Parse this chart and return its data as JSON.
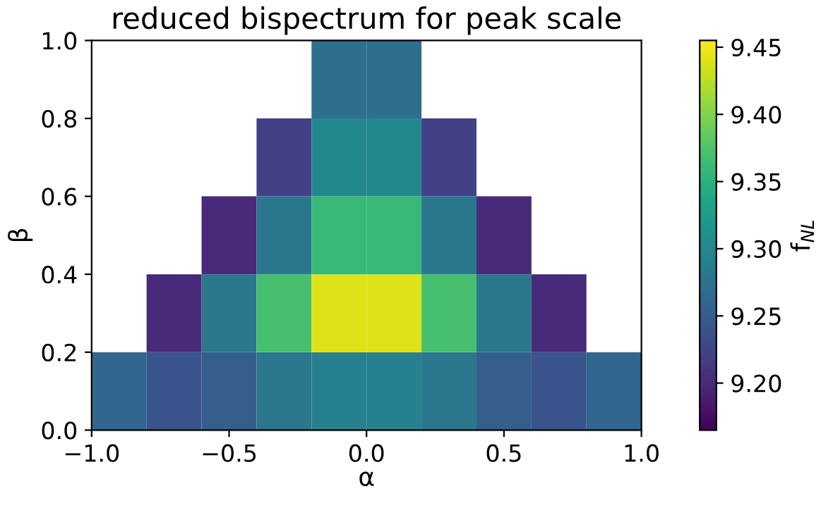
{
  "chart_data": {
    "type": "heatmap",
    "title": "reduced bispectrum for peak scale",
    "xlabel": "α",
    "ylabel": "β",
    "clabel": "f$_{NL}$",
    "x": [
      -0.9,
      -0.7,
      -0.5,
      -0.3,
      -0.1,
      0.1,
      0.3,
      0.5,
      0.7,
      0.9
    ],
    "y": [
      0.9,
      0.7,
      0.5,
      0.3,
      0.1
    ],
    "cells": [
      [
        null,
        null,
        null,
        null,
        9.27,
        9.27,
        null,
        null,
        null,
        null
      ],
      [
        null,
        null,
        null,
        9.22,
        9.3,
        9.3,
        9.22,
        null,
        null,
        null
      ],
      [
        null,
        null,
        9.2,
        9.28,
        9.36,
        9.36,
        9.28,
        9.2,
        null,
        null
      ],
      [
        null,
        9.2,
        9.28,
        9.37,
        9.44,
        9.44,
        9.37,
        9.28,
        9.2,
        null
      ],
      [
        9.26,
        9.24,
        9.25,
        9.28,
        9.29,
        9.29,
        9.28,
        9.25,
        9.24,
        9.26
      ]
    ],
    "xlim": [
      -1,
      1
    ],
    "ylim": [
      0,
      1
    ],
    "xticks": [
      {
        "value": -1,
        "label": "−1.0"
      },
      {
        "value": -0.5,
        "label": "−0.5"
      },
      {
        "value": 0,
        "label": "0.0"
      },
      {
        "value": 0.5,
        "label": "0.5"
      },
      {
        "value": 1,
        "label": "1.0"
      }
    ],
    "yticks": [
      {
        "value": 0,
        "label": "0.0"
      },
      {
        "value": 0.2,
        "label": "0.2"
      },
      {
        "value": 0.4,
        "label": "0.4"
      },
      {
        "value": 0.6,
        "label": "0.6"
      },
      {
        "value": 0.8,
        "label": "0.8"
      },
      {
        "value": 1,
        "label": "1.0"
      }
    ],
    "clim": [
      9.165,
      9.455
    ],
    "cticks": [
      {
        "value": 9.2,
        "label": "9.20"
      },
      {
        "value": 9.25,
        "label": "9.25"
      },
      {
        "value": 9.3,
        "label": "9.30"
      },
      {
        "value": 9.35,
        "label": "9.35"
      },
      {
        "value": 9.4,
        "label": "9.40"
      },
      {
        "value": 9.45,
        "label": "9.45"
      }
    ],
    "grid": false
  }
}
